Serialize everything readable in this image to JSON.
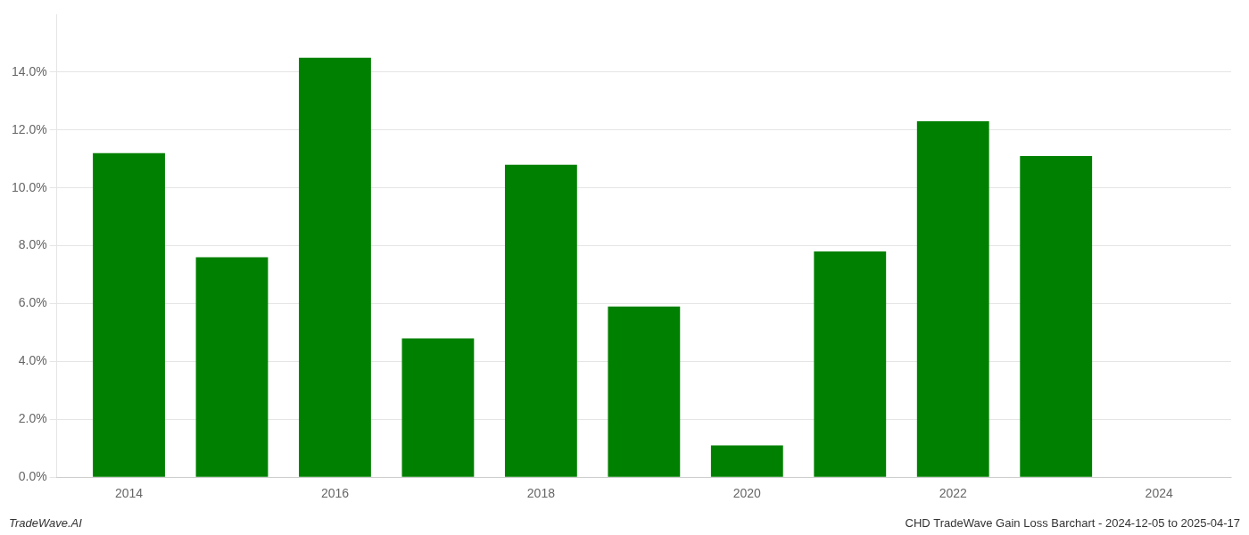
{
  "chart_data": {
    "type": "bar",
    "x": [
      2014,
      2015,
      2016,
      2017,
      2018,
      2019,
      2020,
      2021,
      2022,
      2023
    ],
    "values": [
      0.112,
      0.076,
      0.145,
      0.048,
      0.108,
      0.059,
      0.011,
      0.078,
      0.123,
      0.111
    ],
    "color": "#008000",
    "xlim": [
      2013.3,
      2024.7
    ],
    "xticks": [
      2014,
      2016,
      2018,
      2020,
      2022,
      2024
    ],
    "ylim": [
      0,
      0.16
    ],
    "yticks": [
      {
        "value": 0.0,
        "label": "0.0%"
      },
      {
        "value": 0.02,
        "label": "2.0%"
      },
      {
        "value": 0.04,
        "label": "4.0%"
      },
      {
        "value": 0.06,
        "label": "6.0%"
      },
      {
        "value": 0.08,
        "label": "8.0%"
      },
      {
        "value": 0.1,
        "label": "10.0%"
      },
      {
        "value": 0.12,
        "label": "12.0%"
      },
      {
        "value": 0.14,
        "label": "14.0%"
      }
    ],
    "grid": true,
    "annotations": [
      "TradeWave.AI",
      "CHD TradeWave Gain Loss Barchart - 2024-12-05 to 2025-04-17"
    ]
  }
}
